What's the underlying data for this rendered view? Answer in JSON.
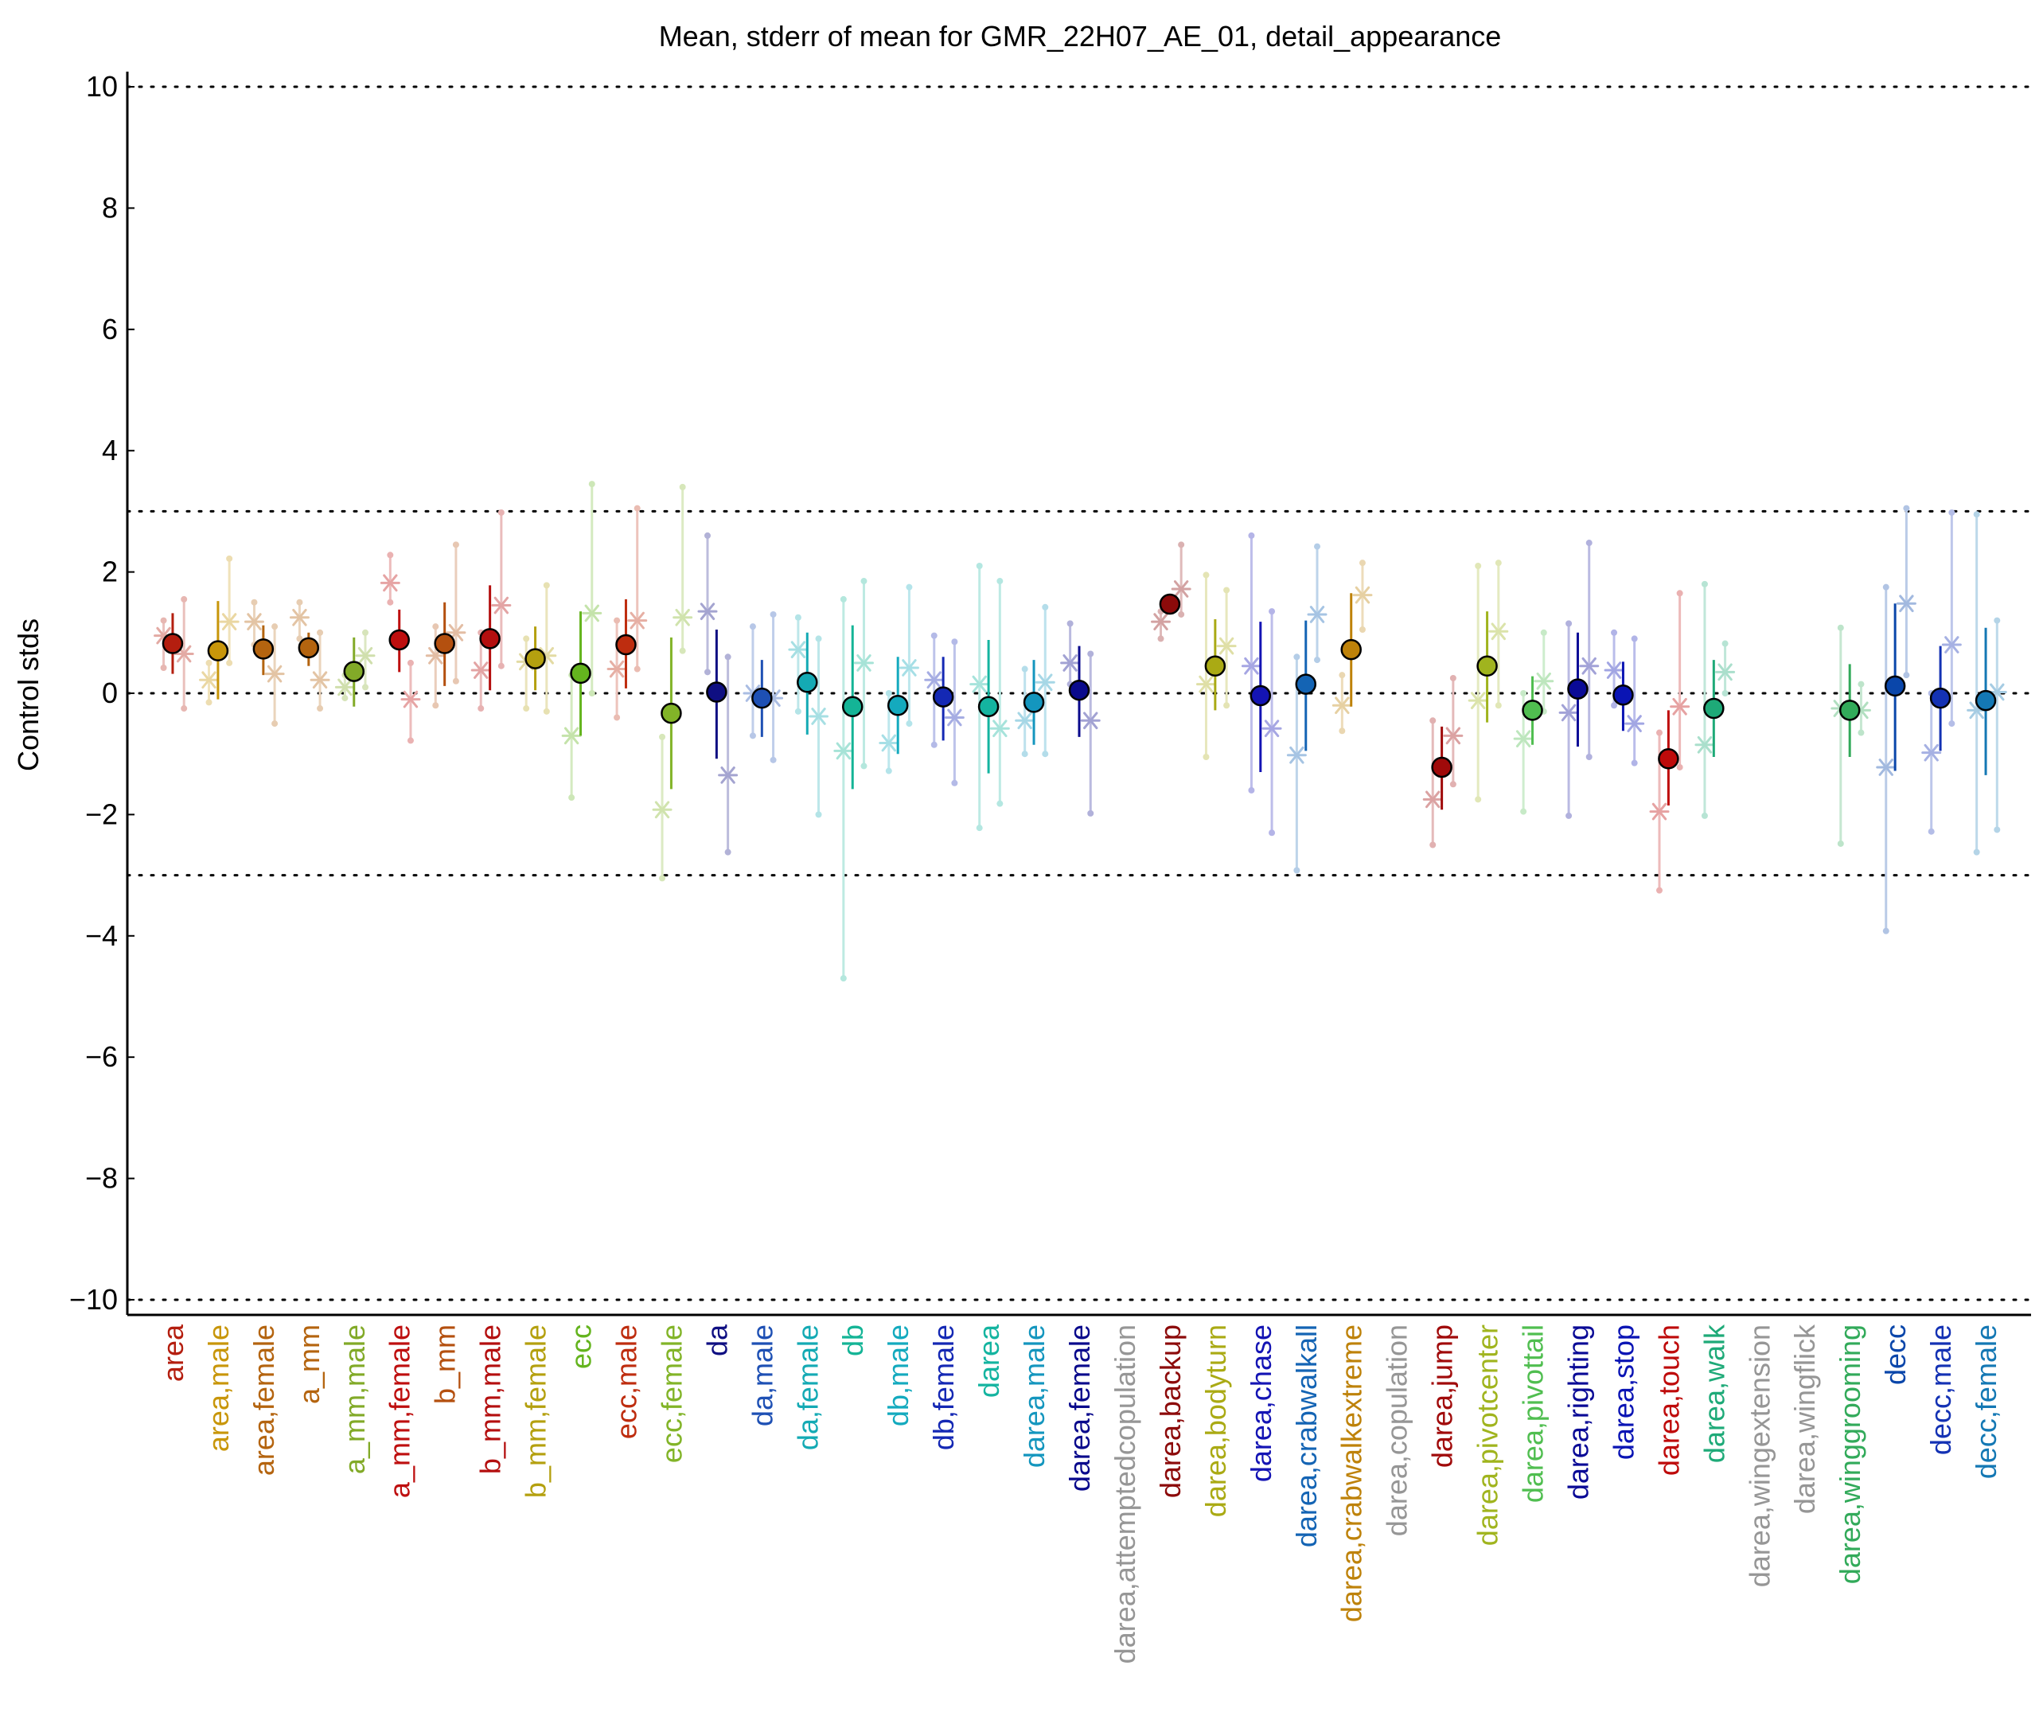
{
  "chart_data": {
    "type": "scatter",
    "title": "Mean, stderr of mean for GMR_22H07_AE_01, detail_appearance",
    "xlabel": "",
    "ylabel": "Control stds",
    "ylim": [
      -10.25,
      10.25
    ],
    "yticks": [
      10,
      8,
      6,
      4,
      2,
      0,
      -2,
      -4,
      -6,
      -8,
      -10
    ],
    "ytick_labels": [
      "10",
      "8",
      "6",
      "4",
      "2",
      "0",
      "−2",
      "−4",
      "−6",
      "−8",
      "−10"
    ],
    "reference_lines": [
      10,
      3,
      0,
      -3,
      -10
    ],
    "grid": false,
    "legend": "none",
    "categories": [
      {
        "label": "area",
        "color": "#b41e0f",
        "mean": 0.82,
        "err_lo": 0.32,
        "err_hi": 1.32,
        "markers": [
          {
            "dx": -0.2,
            "y": 0.95,
            "lo": 0.42,
            "hi": 1.2
          },
          {
            "dx": 0.25,
            "y": 0.65,
            "lo": -0.25,
            "hi": 1.55
          }
        ]
      },
      {
        "label": "area,male",
        "color": "#c8960a",
        "mean": 0.7,
        "err_lo": -0.1,
        "err_hi": 1.52,
        "markers": [
          {
            "dx": -0.2,
            "y": 0.22,
            "lo": -0.15,
            "hi": 0.5
          },
          {
            "dx": 0.25,
            "y": 1.18,
            "lo": 0.5,
            "hi": 2.22
          }
        ]
      },
      {
        "label": "area,female",
        "color": "#b4640f",
        "mean": 0.73,
        "err_lo": 0.3,
        "err_hi": 1.12,
        "markers": [
          {
            "dx": -0.2,
            "y": 1.18,
            "lo": 0.8,
            "hi": 1.5
          },
          {
            "dx": 0.25,
            "y": 0.32,
            "lo": -0.5,
            "hi": 1.1
          }
        ]
      },
      {
        "label": "a_mm",
        "color": "#b4640f",
        "mean": 0.75,
        "err_lo": 0.45,
        "err_hi": 1.0,
        "markers": [
          {
            "dx": -0.2,
            "y": 1.25,
            "lo": 0.9,
            "hi": 1.5
          },
          {
            "dx": 0.25,
            "y": 0.22,
            "lo": -0.25,
            "hi": 1.0
          }
        ]
      },
      {
        "label": "a_mm,male",
        "color": "#82aa28",
        "mean": 0.36,
        "err_lo": -0.22,
        "err_hi": 0.92,
        "markers": [
          {
            "dx": -0.2,
            "y": 0.1,
            "lo": -0.08,
            "hi": 0.3
          },
          {
            "dx": 0.25,
            "y": 0.62,
            "lo": 0.1,
            "hi": 1.0
          }
        ]
      },
      {
        "label": "a_mm,female",
        "color": "#be0f0f",
        "mean": 0.88,
        "err_lo": 0.35,
        "err_hi": 1.38,
        "markers": [
          {
            "dx": -0.2,
            "y": 1.82,
            "lo": 1.5,
            "hi": 2.28
          },
          {
            "dx": 0.25,
            "y": -0.1,
            "lo": -0.78,
            "hi": 0.5
          }
        ]
      },
      {
        "label": "b_mm",
        "color": "#b4500f",
        "mean": 0.82,
        "err_lo": 0.12,
        "err_hi": 1.5,
        "markers": [
          {
            "dx": -0.2,
            "y": 0.62,
            "lo": -0.2,
            "hi": 1.1
          },
          {
            "dx": 0.25,
            "y": 1.0,
            "lo": 0.2,
            "hi": 2.45
          }
        ]
      },
      {
        "label": "b_mm,male",
        "color": "#b40f0f",
        "mean": 0.9,
        "err_lo": 0.05,
        "err_hi": 1.78,
        "markers": [
          {
            "dx": -0.2,
            "y": 0.38,
            "lo": -0.25,
            "hi": 1.0
          },
          {
            "dx": 0.25,
            "y": 1.45,
            "lo": 0.45,
            "hi": 2.98
          }
        ]
      },
      {
        "label": "b_mm,female",
        "color": "#b4a00f",
        "mean": 0.57,
        "err_lo": 0.05,
        "err_hi": 1.1,
        "markers": [
          {
            "dx": -0.2,
            "y": 0.52,
            "lo": -0.25,
            "hi": 0.9
          },
          {
            "dx": 0.25,
            "y": 0.62,
            "lo": -0.3,
            "hi": 1.78
          }
        ]
      },
      {
        "label": "ecc",
        "color": "#64b41e",
        "mean": 0.33,
        "err_lo": -0.7,
        "err_hi": 1.35,
        "markers": [
          {
            "dx": -0.2,
            "y": -0.7,
            "lo": -1.72,
            "hi": 0.3
          },
          {
            "dx": 0.25,
            "y": 1.32,
            "lo": 0.0,
            "hi": 3.45
          }
        ]
      },
      {
        "label": "ecc,male",
        "color": "#be2d0f",
        "mean": 0.8,
        "err_lo": 0.08,
        "err_hi": 1.55,
        "markers": [
          {
            "dx": -0.2,
            "y": 0.4,
            "lo": -0.4,
            "hi": 1.2
          },
          {
            "dx": 0.25,
            "y": 1.2,
            "lo": 0.4,
            "hi": 3.05
          }
        ]
      },
      {
        "label": "ecc,female",
        "color": "#82b428",
        "mean": -0.33,
        "err_lo": -1.58,
        "err_hi": 0.92,
        "markers": [
          {
            "dx": -0.2,
            "y": -1.92,
            "lo": -3.05,
            "hi": -0.72
          },
          {
            "dx": 0.25,
            "y": 1.25,
            "lo": 0.7,
            "hi": 3.4
          }
        ]
      },
      {
        "label": "da",
        "color": "#0f0f82",
        "mean": 0.02,
        "err_lo": -1.08,
        "err_hi": 1.05,
        "markers": [
          {
            "dx": -0.2,
            "y": 1.35,
            "lo": 0.35,
            "hi": 2.6
          },
          {
            "dx": 0.25,
            "y": -1.35,
            "lo": -2.62,
            "hi": 0.6
          }
        ]
      },
      {
        "label": "da,male",
        "color": "#1e50b4",
        "mean": -0.08,
        "err_lo": -0.72,
        "err_hi": 0.55,
        "markers": [
          {
            "dx": -0.2,
            "y": 0.0,
            "lo": -0.7,
            "hi": 1.1
          },
          {
            "dx": 0.25,
            "y": -0.08,
            "lo": -1.1,
            "hi": 1.3
          }
        ]
      },
      {
        "label": "da,female",
        "color": "#14aab4",
        "mean": 0.18,
        "err_lo": -0.68,
        "err_hi": 1.0,
        "markers": [
          {
            "dx": -0.2,
            "y": 0.72,
            "lo": -0.3,
            "hi": 1.25
          },
          {
            "dx": 0.25,
            "y": -0.38,
            "lo": -2.0,
            "hi": 0.9
          }
        ]
      },
      {
        "label": "db",
        "color": "#14b496",
        "mean": -0.22,
        "err_lo": -1.58,
        "err_hi": 1.12,
        "markers": [
          {
            "dx": -0.2,
            "y": -0.95,
            "lo": -4.7,
            "hi": 1.55
          },
          {
            "dx": 0.25,
            "y": 0.5,
            "lo": -1.2,
            "hi": 1.85
          }
        ]
      },
      {
        "label": "db,male",
        "color": "#14aabe",
        "mean": -0.2,
        "err_lo": -1.0,
        "err_hi": 0.6,
        "markers": [
          {
            "dx": -0.2,
            "y": -0.82,
            "lo": -1.28,
            "hi": 0.0
          },
          {
            "dx": 0.25,
            "y": 0.42,
            "lo": -0.5,
            "hi": 1.75
          }
        ]
      },
      {
        "label": "db,female",
        "color": "#1428b4",
        "mean": -0.06,
        "err_lo": -0.78,
        "err_hi": 0.6,
        "markers": [
          {
            "dx": -0.2,
            "y": 0.22,
            "lo": -0.85,
            "hi": 0.95
          },
          {
            "dx": 0.25,
            "y": -0.4,
            "lo": -1.48,
            "hi": 0.85
          }
        ]
      },
      {
        "label": "darea",
        "color": "#14b4a0",
        "mean": -0.22,
        "err_lo": -1.32,
        "err_hi": 0.88,
        "markers": [
          {
            "dx": -0.2,
            "y": 0.15,
            "lo": -2.22,
            "hi": 2.1
          },
          {
            "dx": 0.25,
            "y": -0.58,
            "lo": -1.82,
            "hi": 1.85
          }
        ]
      },
      {
        "label": "darea,male",
        "color": "#1496be",
        "mean": -0.15,
        "err_lo": -0.85,
        "err_hi": 0.55,
        "markers": [
          {
            "dx": -0.2,
            "y": -0.45,
            "lo": -1.0,
            "hi": 0.4
          },
          {
            "dx": 0.25,
            "y": 0.18,
            "lo": -1.0,
            "hi": 1.42
          }
        ]
      },
      {
        "label": "darea,female",
        "color": "#0a0a8c",
        "mean": 0.05,
        "err_lo": -0.72,
        "err_hi": 0.78,
        "markers": [
          {
            "dx": -0.2,
            "y": 0.5,
            "lo": 0.15,
            "hi": 1.15
          },
          {
            "dx": 0.25,
            "y": -0.45,
            "lo": -1.98,
            "hi": 0.65
          }
        ]
      },
      {
        "label": "darea,attemptedcopulation",
        "color": "#969696",
        "mean": null,
        "err_lo": null,
        "err_hi": null,
        "markers": []
      },
      {
        "label": "darea,backup",
        "color": "#8c0a0a",
        "mean": 1.47,
        "err_lo": 1.3,
        "err_hi": 1.62,
        "markers": [
          {
            "dx": -0.2,
            "y": 1.18,
            "lo": 0.9,
            "hi": 1.35
          },
          {
            "dx": 0.25,
            "y": 1.72,
            "lo": 1.3,
            "hi": 2.45
          }
        ]
      },
      {
        "label": "darea,bodyturn",
        "color": "#aaaa14",
        "mean": 0.45,
        "err_lo": -0.28,
        "err_hi": 1.22,
        "markers": [
          {
            "dx": -0.2,
            "y": 0.15,
            "lo": -1.05,
            "hi": 1.95
          },
          {
            "dx": 0.25,
            "y": 0.78,
            "lo": -0.2,
            "hi": 1.7
          }
        ]
      },
      {
        "label": "darea,chase",
        "color": "#1414b4",
        "mean": -0.04,
        "err_lo": -1.3,
        "err_hi": 1.18,
        "markers": [
          {
            "dx": -0.2,
            "y": 0.45,
            "lo": -1.6,
            "hi": 2.6
          },
          {
            "dx": 0.25,
            "y": -0.58,
            "lo": -2.3,
            "hi": 1.35
          }
        ]
      },
      {
        "label": "darea,crabwalkall",
        "color": "#1464b4",
        "mean": 0.15,
        "err_lo": -0.95,
        "err_hi": 1.2,
        "markers": [
          {
            "dx": -0.2,
            "y": -1.02,
            "lo": -2.92,
            "hi": 0.6
          },
          {
            "dx": 0.25,
            "y": 1.3,
            "lo": 0.55,
            "hi": 2.42
          }
        ]
      },
      {
        "label": "darea,crabwalkextreme",
        "color": "#be820a",
        "mean": 0.72,
        "err_lo": -0.22,
        "err_hi": 1.65,
        "markers": [
          {
            "dx": -0.2,
            "y": -0.2,
            "lo": -0.62,
            "hi": 0.3
          },
          {
            "dx": 0.25,
            "y": 1.62,
            "lo": 1.05,
            "hi": 2.15
          }
        ]
      },
      {
        "label": "darea,copulation",
        "color": "#969696",
        "mean": null,
        "err_lo": null,
        "err_hi": null,
        "markers": []
      },
      {
        "label": "darea,jump",
        "color": "#a00a0a",
        "mean": -1.22,
        "err_lo": -1.92,
        "err_hi": -0.55,
        "markers": [
          {
            "dx": -0.2,
            "y": -1.75,
            "lo": -2.5,
            "hi": -0.45
          },
          {
            "dx": 0.25,
            "y": -0.7,
            "lo": -1.5,
            "hi": 0.25
          }
        ]
      },
      {
        "label": "darea,pivotcenter",
        "color": "#a0b41e",
        "mean": 0.45,
        "err_lo": -0.48,
        "err_hi": 1.35,
        "markers": [
          {
            "dx": -0.2,
            "y": -0.12,
            "lo": -1.75,
            "hi": 2.1
          },
          {
            "dx": 0.25,
            "y": 1.02,
            "lo": -0.2,
            "hi": 2.15
          }
        ]
      },
      {
        "label": "darea,pivottail",
        "color": "#50be50",
        "mean": -0.28,
        "err_lo": -0.85,
        "err_hi": 0.28,
        "markers": [
          {
            "dx": -0.2,
            "y": -0.75,
            "lo": -1.95,
            "hi": 0.0
          },
          {
            "dx": 0.25,
            "y": 0.2,
            "lo": -0.3,
            "hi": 1.0
          }
        ]
      },
      {
        "label": "darea,righting",
        "color": "#0a0a96",
        "mean": 0.07,
        "err_lo": -0.88,
        "err_hi": 1.0,
        "markers": [
          {
            "dx": -0.2,
            "y": -0.32,
            "lo": -2.02,
            "hi": 1.15
          },
          {
            "dx": 0.25,
            "y": 0.45,
            "lo": -1.05,
            "hi": 2.48
          }
        ]
      },
      {
        "label": "darea,stop",
        "color": "#0a14b4",
        "mean": -0.03,
        "err_lo": -0.62,
        "err_hi": 0.52,
        "markers": [
          {
            "dx": -0.2,
            "y": 0.38,
            "lo": -0.2,
            "hi": 1.0
          },
          {
            "dx": 0.25,
            "y": -0.5,
            "lo": -1.15,
            "hi": 0.9
          }
        ]
      },
      {
        "label": "darea,touch",
        "color": "#be0a0a",
        "mean": -1.08,
        "err_lo": -1.85,
        "err_hi": -0.28,
        "markers": [
          {
            "dx": -0.2,
            "y": -1.95,
            "lo": -3.25,
            "hi": -0.65
          },
          {
            "dx": 0.25,
            "y": -0.22,
            "lo": -1.22,
            "hi": 1.65
          }
        ]
      },
      {
        "label": "darea,walk",
        "color": "#1eaa78",
        "mean": -0.25,
        "err_lo": -1.05,
        "err_hi": 0.55,
        "markers": [
          {
            "dx": -0.2,
            "y": -0.85,
            "lo": -2.02,
            "hi": 1.8
          },
          {
            "dx": 0.25,
            "y": 0.35,
            "lo": 0.0,
            "hi": 0.82
          }
        ]
      },
      {
        "label": "darea,wingextension",
        "color": "#969696",
        "mean": null,
        "err_lo": null,
        "err_hi": null,
        "markers": []
      },
      {
        "label": "darea,wingflick",
        "color": "#969696",
        "mean": null,
        "err_lo": null,
        "err_hi": null,
        "markers": []
      },
      {
        "label": "darea,winggrooming",
        "color": "#32aa5a",
        "mean": -0.28,
        "err_lo": -1.05,
        "err_hi": 0.48,
        "markers": [
          {
            "dx": -0.2,
            "y": -0.25,
            "lo": -2.48,
            "hi": 1.08
          },
          {
            "dx": 0.25,
            "y": -0.28,
            "lo": -0.65,
            "hi": 0.15
          }
        ]
      },
      {
        "label": "decc",
        "color": "#0a46aa",
        "mean": 0.12,
        "err_lo": -1.28,
        "err_hi": 1.48,
        "markers": [
          {
            "dx": -0.2,
            "y": -1.22,
            "lo": -3.92,
            "hi": 1.75
          },
          {
            "dx": 0.25,
            "y": 1.48,
            "lo": 0.3,
            "hi": 3.05
          }
        ]
      },
      {
        "label": "decc,male",
        "color": "#1432b4",
        "mean": -0.08,
        "err_lo": -0.95,
        "err_hi": 0.78,
        "markers": [
          {
            "dx": -0.2,
            "y": -0.98,
            "lo": -2.28,
            "hi": 0.0
          },
          {
            "dx": 0.25,
            "y": 0.8,
            "lo": -0.5,
            "hi": 2.98
          }
        ]
      },
      {
        "label": "decc,female",
        "color": "#1478b4",
        "mean": -0.12,
        "err_lo": -1.35,
        "err_hi": 1.08,
        "markers": [
          {
            "dx": -0.2,
            "y": -0.28,
            "lo": -2.62,
            "hi": 2.95
          },
          {
            "dx": 0.25,
            "y": 0.02,
            "lo": -2.25,
            "hi": 1.2
          }
        ]
      }
    ]
  }
}
